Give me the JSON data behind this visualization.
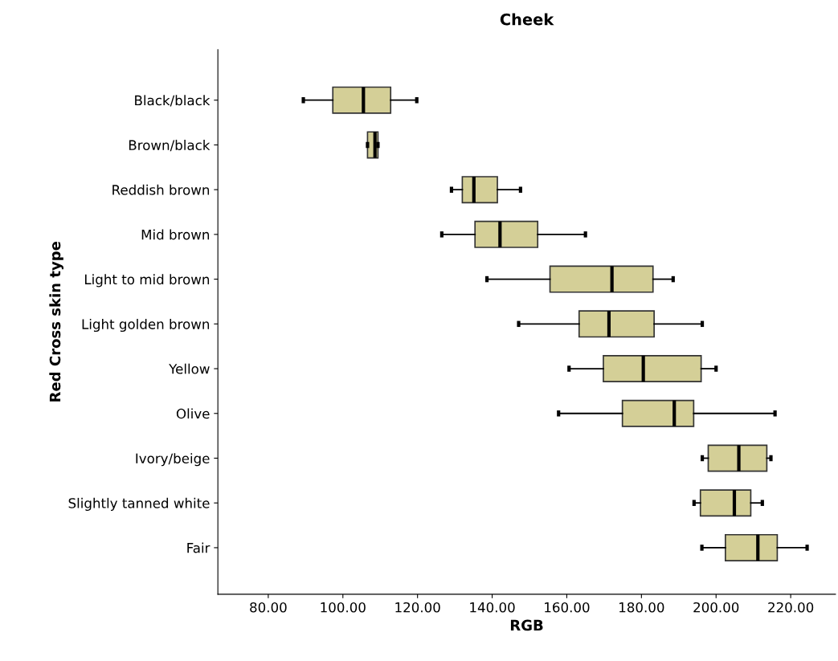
{
  "chart_data": {
    "type": "box",
    "title": "Cheek",
    "xlabel": "RGB",
    "ylabel": "Red Cross skin type",
    "orientation": "horizontal",
    "categories": [
      "Black/black",
      "Brown/black",
      "Reddish brown",
      "Mid brown",
      "Light to mid brown",
      "Light golden brown",
      "Yellow",
      "Olive",
      "Ivory/beige",
      "Slightly tanned white",
      "Fair"
    ],
    "series": [
      {
        "color": "#d4cf97",
        "boxes": [
          {
            "low": 89.4,
            "q1": 97.3,
            "median": 105.5,
            "q3": 112.8,
            "high": 119.8
          },
          {
            "low": 106.6,
            "q1": 106.6,
            "median": 108.6,
            "q3": 109.4,
            "high": 109.4
          },
          {
            "low": 129.1,
            "q1": 132.0,
            "median": 135.1,
            "q3": 141.4,
            "high": 147.6
          },
          {
            "low": 126.5,
            "q1": 135.4,
            "median": 142.1,
            "q3": 152.2,
            "high": 165.0
          },
          {
            "low": 138.6,
            "q1": 155.5,
            "median": 172.1,
            "q3": 183.1,
            "high": 188.5
          },
          {
            "low": 147.1,
            "q1": 163.3,
            "median": 171.3,
            "q3": 183.4,
            "high": 196.3
          },
          {
            "low": 160.6,
            "q1": 169.8,
            "median": 180.5,
            "q3": 196.0,
            "high": 200.0
          },
          {
            "low": 157.8,
            "q1": 174.9,
            "median": 188.8,
            "q3": 194.0,
            "high": 215.8
          },
          {
            "low": 196.3,
            "q1": 197.9,
            "median": 206.1,
            "q3": 213.6,
            "high": 214.7
          },
          {
            "low": 194.1,
            "q1": 195.8,
            "median": 204.9,
            "q3": 209.3,
            "high": 212.4
          },
          {
            "low": 196.2,
            "q1": 202.5,
            "median": 211.2,
            "q3": 216.4,
            "high": 224.4
          }
        ]
      }
    ],
    "xlim": [
      66.5,
      232
    ],
    "xticks": [
      {
        "value": 80,
        "label": "80.00"
      },
      {
        "value": 100,
        "label": "100.00"
      },
      {
        "value": 120,
        "label": "120.00"
      },
      {
        "value": 140,
        "label": "140.00"
      },
      {
        "value": 160,
        "label": "160.00"
      },
      {
        "value": 180,
        "label": "180.00"
      },
      {
        "value": 200,
        "label": "200.00"
      },
      {
        "value": 220,
        "label": "220.00"
      }
    ],
    "grid": false
  }
}
